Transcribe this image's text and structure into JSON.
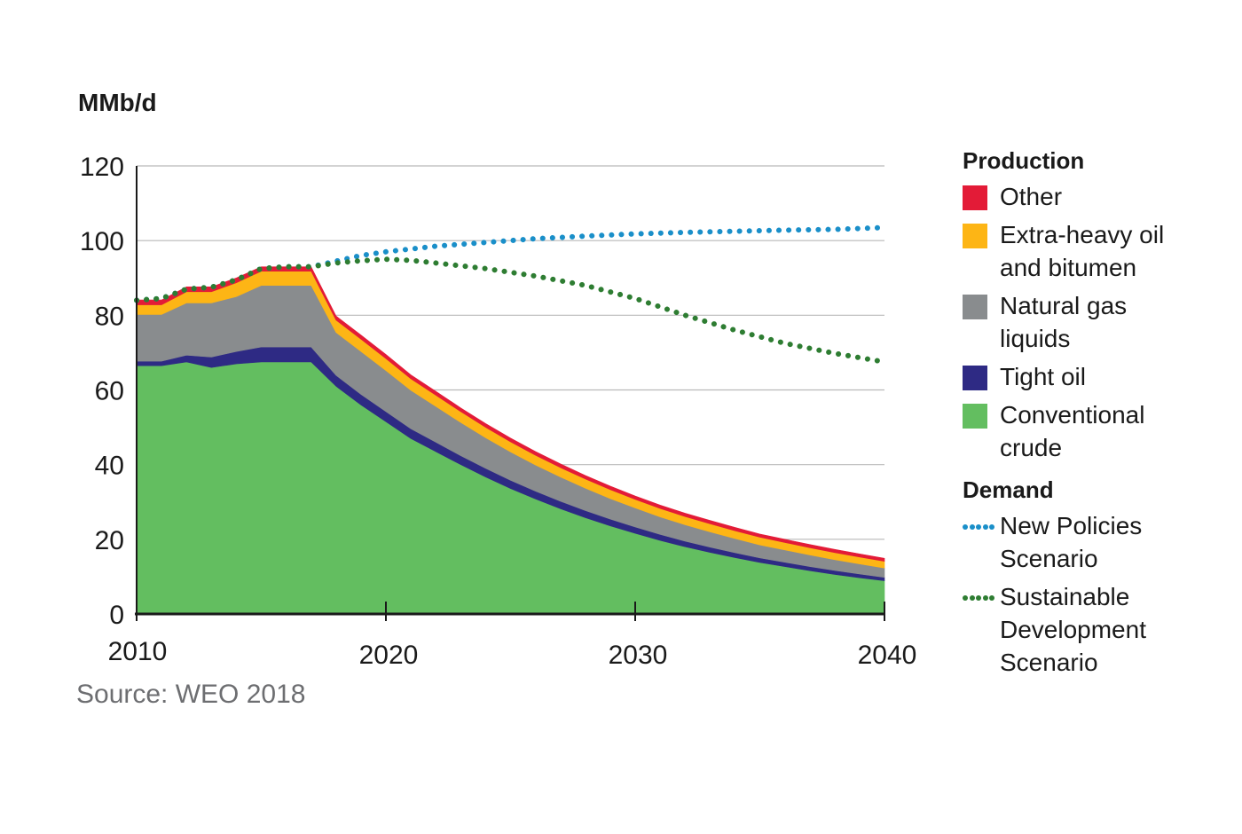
{
  "chart_data": {
    "type": "area",
    "ylabel": "MMb/d",
    "ylim": [
      0,
      120
    ],
    "yticks": [
      "0",
      "20",
      "40",
      "60",
      "80",
      "100",
      "120"
    ],
    "xlim": [
      2010,
      2040
    ],
    "xticks": [
      "2010",
      "2020",
      "2030",
      "2040"
    ],
    "grid": true,
    "source": "Source: WEO 2018",
    "legend": {
      "production_title": "Production",
      "demand_title": "Demand"
    },
    "x": [
      2010,
      2011,
      2012,
      2013,
      2014,
      2015,
      2016,
      2017,
      2018,
      2019,
      2020,
      2021,
      2022,
      2023,
      2024,
      2025,
      2026,
      2027,
      2028,
      2029,
      2030,
      2031,
      2032,
      2033,
      2034,
      2035,
      2036,
      2037,
      2038,
      2039,
      2040
    ],
    "series": [
      {
        "name": "Conventional crude",
        "color": "#63be60",
        "values": [
          66.5,
          66.5,
          67.5,
          66,
          67,
          67.5,
          67.5,
          67.5,
          61,
          56,
          51.5,
          47,
          43.5,
          40,
          36.7,
          33.6,
          30.8,
          28.2,
          25.8,
          23.6,
          21.6,
          19.7,
          18,
          16.5,
          15.1,
          13.8,
          12.7,
          11.6,
          10.6,
          9.7,
          8.9
        ]
      },
      {
        "name": "Tight oil",
        "color": "#2e2a84",
        "values": [
          1.2,
          1.2,
          1.8,
          2.8,
          3.3,
          4,
          4,
          4,
          2.9,
          2.8,
          2.7,
          2.6,
          2.5,
          2.4,
          2.3,
          2.2,
          2.1,
          2,
          1.9,
          1.8,
          1.7,
          1.6,
          1.5,
          1.4,
          1.3,
          1.2,
          1.15,
          1.1,
          1.05,
          1,
          0.9
        ]
      },
      {
        "name": "Natural gas liquids",
        "color": "#898c8e",
        "values": [
          12.5,
          12.5,
          14,
          14.5,
          14.7,
          16.5,
          16.5,
          16.5,
          11.5,
          11.5,
          11,
          10.3,
          9.6,
          8.9,
          8.2,
          7.6,
          7,
          6.5,
          6,
          5.5,
          5.1,
          4.7,
          4.4,
          4.1,
          3.8,
          3.5,
          3.3,
          3.1,
          2.9,
          2.7,
          2.5
        ]
      },
      {
        "name": "Extra-heavy oil and bitumen",
        "color": "#fdb515",
        "values": [
          2.6,
          2.6,
          3,
          3,
          3.7,
          3.8,
          3.8,
          3.8,
          3.3,
          3.3,
          3.2,
          3.1,
          3,
          2.9,
          2.8,
          2.7,
          2.6,
          2.5,
          2.45,
          2.4,
          2.3,
          2.25,
          2.2,
          2.15,
          2.1,
          2.05,
          2,
          1.95,
          1.9,
          1.85,
          1.8
        ]
      },
      {
        "name": "Other",
        "color": "#e31b37",
        "values": [
          1.3,
          1.3,
          1.3,
          1.3,
          1.3,
          1.2,
          1.2,
          1.2,
          1.1,
          1.1,
          1.1,
          1.05,
          1.05,
          1,
          1,
          1,
          1,
          1,
          0.95,
          0.95,
          0.9,
          0.9,
          0.9,
          0.9,
          0.9,
          0.85,
          0.85,
          0.85,
          0.85,
          0.85,
          0.8
        ]
      }
    ],
    "demand": [
      {
        "name": "New Policies Scenario",
        "color": "#1a8fc9",
        "x": [
          2010,
          2011,
          2012,
          2013,
          2014,
          2015,
          2016,
          2017,
          2018,
          2019,
          2020,
          2022,
          2024,
          2026,
          2028,
          2030,
          2032,
          2034,
          2036,
          2038,
          2040
        ],
        "values": [
          84,
          84.5,
          87,
          87.5,
          89.5,
          92.5,
          93,
          93,
          94.5,
          96,
          97,
          98.5,
          99.5,
          100.5,
          101.2,
          101.8,
          102.2,
          102.5,
          102.8,
          103,
          103.5
        ]
      },
      {
        "name": "Sustainable Development Scenario",
        "color": "#2e7d32",
        "x": [
          2010,
          2011,
          2012,
          2013,
          2014,
          2015,
          2016,
          2017,
          2018,
          2019,
          2020,
          2021,
          2022,
          2024,
          2026,
          2028,
          2030,
          2032,
          2034,
          2036,
          2038,
          2040
        ],
        "values": [
          84,
          84.5,
          87,
          87.5,
          89.5,
          92.5,
          93,
          93,
          94,
          94.6,
          95,
          94.7,
          94,
          92.5,
          90.5,
          88,
          84.5,
          80,
          76,
          72.5,
          69.8,
          67.5
        ]
      }
    ]
  }
}
